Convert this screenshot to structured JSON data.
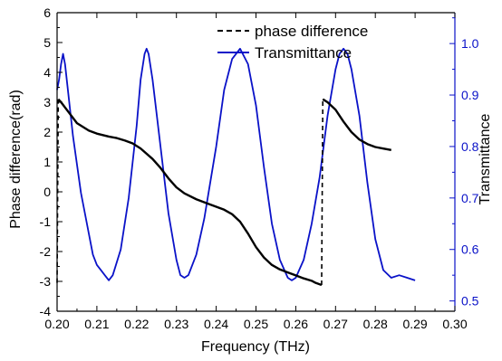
{
  "chart_data": {
    "type": "line",
    "xlabel": "Frequency (THz)",
    "ylabel_left": "Phase difference(rad)",
    "ylabel_right": "Transmittance",
    "xlim": [
      0.2,
      0.3
    ],
    "ylim_left": [
      -4,
      6
    ],
    "ylim_right": [
      0.48,
      1.06
    ],
    "x_ticks": [
      "0.20",
      "0.21",
      "0.22",
      "0.23",
      "0.24",
      "0.25",
      "0.26",
      "0.27",
      "0.28",
      "0.29",
      "0.30"
    ],
    "y_ticks_left": [
      "-4",
      "-3",
      "-2",
      "-1",
      "0",
      "1",
      "2",
      "3",
      "4",
      "5",
      "6"
    ],
    "y_ticks_right": [
      "0.5",
      "0.6",
      "0.7",
      "0.8",
      "0.9",
      "1.0"
    ],
    "legend_position": "top-center",
    "colors": {
      "phase": "#000000",
      "transmittance": "#0a12c8",
      "right_axis": "#0a12c8"
    },
    "series": [
      {
        "name": "phase difference",
        "axis": "left",
        "style": "dashed",
        "segments": [
          [
            [
              0.2,
              -3.05
            ],
            [
              0.2003,
              3.1
            ],
            [
              0.201,
              3.0
            ],
            [
              0.203,
              2.65
            ],
            [
              0.205,
              2.3
            ],
            [
              0.208,
              2.05
            ],
            [
              0.21,
              1.95
            ],
            [
              0.213,
              1.85
            ],
            [
              0.215,
              1.8
            ],
            [
              0.217,
              1.72
            ],
            [
              0.219,
              1.62
            ],
            [
              0.221,
              1.45
            ],
            [
              0.224,
              1.1
            ],
            [
              0.226,
              0.8
            ],
            [
              0.228,
              0.45
            ],
            [
              0.23,
              0.15
            ],
            [
              0.232,
              -0.05
            ],
            [
              0.235,
              -0.25
            ],
            [
              0.238,
              -0.4
            ],
            [
              0.24,
              -0.5
            ],
            [
              0.242,
              -0.6
            ],
            [
              0.244,
              -0.75
            ],
            [
              0.246,
              -1.0
            ],
            [
              0.248,
              -1.4
            ],
            [
              0.25,
              -1.85
            ],
            [
              0.252,
              -2.2
            ],
            [
              0.254,
              -2.45
            ],
            [
              0.256,
              -2.6
            ],
            [
              0.258,
              -2.7
            ],
            [
              0.26,
              -2.8
            ],
            [
              0.262,
              -2.9
            ],
            [
              0.264,
              -2.98
            ],
            [
              0.265,
              -3.05
            ],
            [
              0.2665,
              -3.12
            ]
          ],
          [
            [
              0.2665,
              -3.12
            ],
            [
              0.2668,
              3.1
            ],
            [
              0.268,
              3.0
            ],
            [
              0.27,
              2.75
            ],
            [
              0.272,
              2.35
            ],
            [
              0.274,
              2.0
            ],
            [
              0.276,
              1.75
            ],
            [
              0.278,
              1.6
            ],
            [
              0.28,
              1.5
            ],
            [
              0.282,
              1.45
            ],
            [
              0.284,
              1.4
            ]
          ]
        ]
      },
      {
        "name": "Transmittance",
        "axis": "right",
        "style": "solid",
        "points": [
          [
            0.2,
            0.91
          ],
          [
            0.2005,
            0.93
          ],
          [
            0.201,
            0.96
          ],
          [
            0.2015,
            0.98
          ],
          [
            0.202,
            0.96
          ],
          [
            0.203,
            0.89
          ],
          [
            0.204,
            0.82
          ],
          [
            0.206,
            0.71
          ],
          [
            0.208,
            0.63
          ],
          [
            0.209,
            0.59
          ],
          [
            0.21,
            0.57
          ],
          [
            0.211,
            0.56
          ],
          [
            0.212,
            0.55
          ],
          [
            0.213,
            0.54
          ],
          [
            0.214,
            0.55
          ],
          [
            0.216,
            0.6
          ],
          [
            0.218,
            0.7
          ],
          [
            0.22,
            0.84
          ],
          [
            0.221,
            0.93
          ],
          [
            0.222,
            0.98
          ],
          [
            0.2225,
            0.99
          ],
          [
            0.223,
            0.98
          ],
          [
            0.224,
            0.93
          ],
          [
            0.226,
            0.8
          ],
          [
            0.228,
            0.67
          ],
          [
            0.23,
            0.58
          ],
          [
            0.231,
            0.55
          ],
          [
            0.232,
            0.545
          ],
          [
            0.233,
            0.55
          ],
          [
            0.235,
            0.59
          ],
          [
            0.237,
            0.66
          ],
          [
            0.24,
            0.8
          ],
          [
            0.242,
            0.91
          ],
          [
            0.244,
            0.97
          ],
          [
            0.246,
            0.99
          ],
          [
            0.248,
            0.96
          ],
          [
            0.25,
            0.88
          ],
          [
            0.252,
            0.76
          ],
          [
            0.254,
            0.65
          ],
          [
            0.256,
            0.58
          ],
          [
            0.258,
            0.545
          ],
          [
            0.259,
            0.54
          ],
          [
            0.26,
            0.545
          ],
          [
            0.262,
            0.58
          ],
          [
            0.264,
            0.65
          ],
          [
            0.266,
            0.74
          ],
          [
            0.268,
            0.86
          ],
          [
            0.27,
            0.95
          ],
          [
            0.271,
            0.98
          ],
          [
            0.272,
            0.99
          ],
          [
            0.273,
            0.98
          ],
          [
            0.274,
            0.95
          ],
          [
            0.276,
            0.86
          ],
          [
            0.278,
            0.73
          ],
          [
            0.28,
            0.62
          ],
          [
            0.282,
            0.56
          ],
          [
            0.284,
            0.545
          ],
          [
            0.286,
            0.55
          ],
          [
            0.288,
            0.545
          ],
          [
            0.29,
            0.54
          ]
        ]
      }
    ]
  }
}
